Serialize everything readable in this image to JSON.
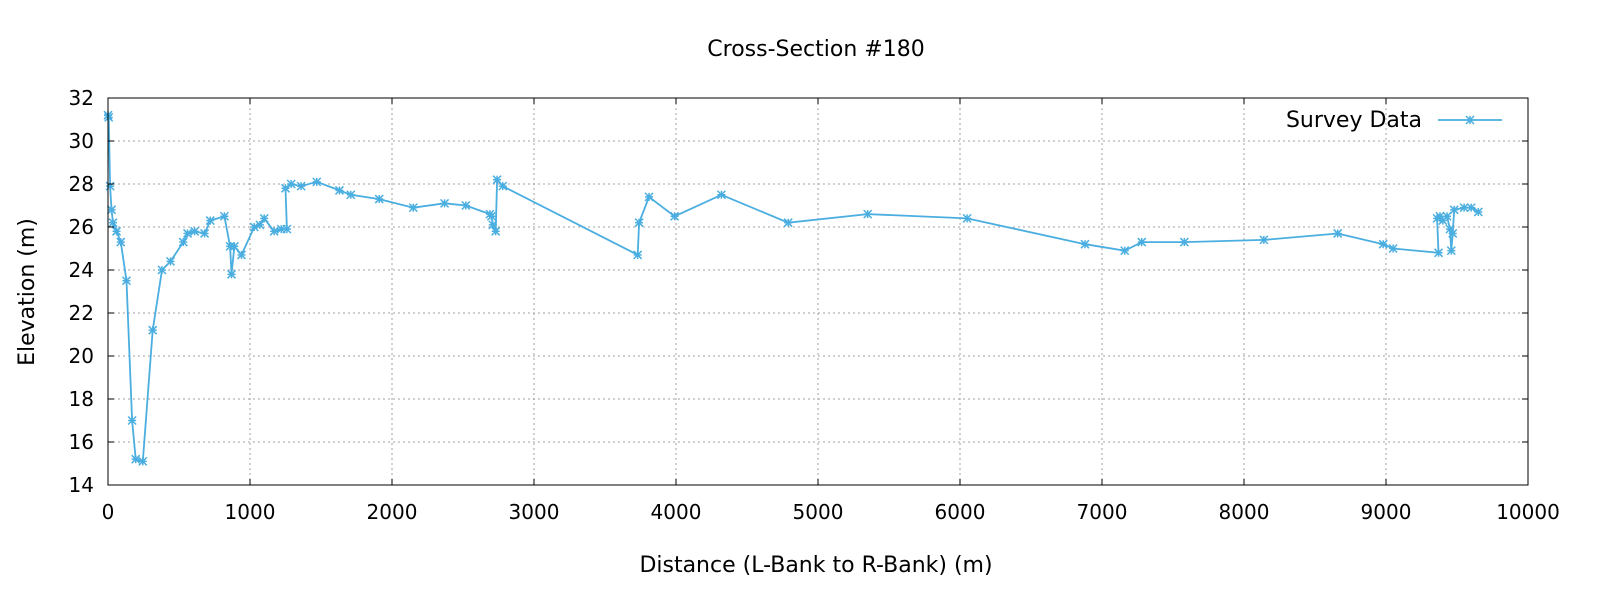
{
  "chart_data": {
    "type": "line",
    "title": "Cross-Section #180",
    "xlabel": "Distance (L-Bank to R-Bank) (m)",
    "ylabel": "Elevation (m)",
    "xlim": [
      0,
      10000
    ],
    "ylim": [
      14,
      32
    ],
    "xticks": [
      0,
      1000,
      2000,
      3000,
      4000,
      5000,
      6000,
      7000,
      8000,
      9000,
      10000
    ],
    "yticks": [
      14,
      16,
      18,
      20,
      22,
      24,
      26,
      28,
      30,
      32
    ],
    "grid": true,
    "legend_position": "top-right",
    "colors": {
      "series": "#4aaee0"
    },
    "series": [
      {
        "name": "Survey Data",
        "marker": "asterisk",
        "points": [
          [
            0,
            31.2
          ],
          [
            5,
            31.1
          ],
          [
            15,
            27.9
          ],
          [
            25,
            26.8
          ],
          [
            35,
            26.2
          ],
          [
            60,
            25.8
          ],
          [
            90,
            25.3
          ],
          [
            130,
            23.5
          ],
          [
            170,
            17.0
          ],
          [
            195,
            15.2
          ],
          [
            245,
            15.1
          ],
          [
            315,
            21.2
          ],
          [
            380,
            24.0
          ],
          [
            440,
            24.4
          ],
          [
            530,
            25.3
          ],
          [
            560,
            25.7
          ],
          [
            610,
            25.8
          ],
          [
            680,
            25.7
          ],
          [
            720,
            26.3
          ],
          [
            820,
            26.5
          ],
          [
            860,
            25.1
          ],
          [
            870,
            23.8
          ],
          [
            890,
            25.1
          ],
          [
            940,
            24.7
          ],
          [
            1030,
            26.0
          ],
          [
            1070,
            26.1
          ],
          [
            1100,
            26.4
          ],
          [
            1170,
            25.8
          ],
          [
            1220,
            25.9
          ],
          [
            1260,
            25.9
          ],
          [
            1250,
            27.8
          ],
          [
            1290,
            28.0
          ],
          [
            1360,
            27.9
          ],
          [
            1470,
            28.1
          ],
          [
            1630,
            27.7
          ],
          [
            1710,
            27.5
          ],
          [
            1910,
            27.3
          ],
          [
            2150,
            26.9
          ],
          [
            2370,
            27.1
          ],
          [
            2520,
            27.0
          ],
          [
            2690,
            26.6
          ],
          [
            2700,
            26.5
          ],
          [
            2710,
            26.1
          ],
          [
            2730,
            25.8
          ],
          [
            2740,
            28.2
          ],
          [
            2780,
            27.9
          ],
          [
            3730,
            24.7
          ],
          [
            3740,
            26.2
          ],
          [
            3810,
            27.4
          ],
          [
            3990,
            26.5
          ],
          [
            4320,
            27.5
          ],
          [
            4790,
            26.2
          ],
          [
            5350,
            26.6
          ],
          [
            6050,
            26.4
          ],
          [
            6880,
            25.2
          ],
          [
            7160,
            24.9
          ],
          [
            7280,
            25.3
          ],
          [
            7580,
            25.3
          ],
          [
            8140,
            25.4
          ],
          [
            8660,
            25.7
          ],
          [
            8980,
            25.2
          ],
          [
            9050,
            25.0
          ],
          [
            9370,
            24.8
          ],
          [
            9360,
            26.4
          ],
          [
            9380,
            26.5
          ],
          [
            9400,
            26.3
          ],
          [
            9430,
            26.5
          ],
          [
            9450,
            25.9
          ],
          [
            9460,
            24.9
          ],
          [
            9470,
            25.7
          ],
          [
            9480,
            26.8
          ],
          [
            9550,
            26.9
          ],
          [
            9600,
            26.9
          ],
          [
            9650,
            26.7
          ]
        ]
      }
    ]
  }
}
